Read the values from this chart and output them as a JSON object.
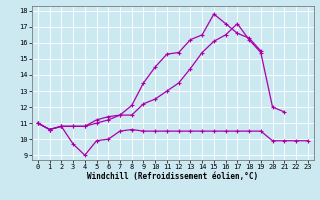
{
  "xlabel": "Windchill (Refroidissement éolien,°C)",
  "background_color": "#cce8f0",
  "line_color": "#aa00aa",
  "grid_color": "#ffffff",
  "xlim": [
    -0.5,
    23.5
  ],
  "ylim": [
    8.7,
    18.3
  ],
  "xticks": [
    0,
    1,
    2,
    3,
    4,
    5,
    6,
    7,
    8,
    9,
    10,
    11,
    12,
    13,
    14,
    15,
    16,
    17,
    18,
    19,
    20,
    21,
    22,
    23
  ],
  "yticks": [
    9,
    10,
    11,
    12,
    13,
    14,
    15,
    16,
    17,
    18
  ],
  "line1_x": [
    0,
    1,
    2,
    3,
    4,
    5,
    6,
    7,
    8,
    9,
    10,
    11,
    12,
    13,
    14,
    15,
    16,
    17,
    18,
    19,
    20,
    21,
    22,
    23
  ],
  "line1_y": [
    11.0,
    10.6,
    10.8,
    9.7,
    9.0,
    9.9,
    10.0,
    10.5,
    10.6,
    10.5,
    10.5,
    10.5,
    10.5,
    10.5,
    10.5,
    10.5,
    10.5,
    10.5,
    10.5,
    10.5,
    9.9,
    9.9,
    9.9,
    9.9
  ],
  "line2_x": [
    0,
    1,
    2,
    3,
    4,
    5,
    6,
    7,
    8,
    9,
    10,
    11,
    12,
    13,
    14,
    15,
    16,
    17,
    18,
    19,
    20,
    21,
    22,
    23
  ],
  "line2_y": [
    11.0,
    10.6,
    10.8,
    10.8,
    10.8,
    11.0,
    11.2,
    11.5,
    11.5,
    12.2,
    12.5,
    13.0,
    13.5,
    14.4,
    15.4,
    16.1,
    16.5,
    17.2,
    16.2,
    15.4,
    12.0,
    11.7,
    null,
    null
  ],
  "line3_x": [
    0,
    1,
    2,
    3,
    4,
    5,
    6,
    7,
    8,
    9,
    10,
    11,
    12,
    13,
    14,
    15,
    16,
    17,
    18,
    19,
    20,
    21,
    22,
    23
  ],
  "line3_y": [
    11.0,
    10.6,
    10.8,
    10.8,
    10.8,
    11.2,
    11.4,
    11.5,
    12.1,
    13.5,
    14.5,
    15.3,
    15.4,
    16.2,
    16.5,
    17.8,
    17.2,
    16.6,
    16.3,
    15.5,
    null,
    null,
    null,
    null
  ],
  "marker": "+",
  "markersize": 3,
  "linewidth": 0.9,
  "xlabel_fontsize": 5.5,
  "tick_fontsize": 5.0
}
